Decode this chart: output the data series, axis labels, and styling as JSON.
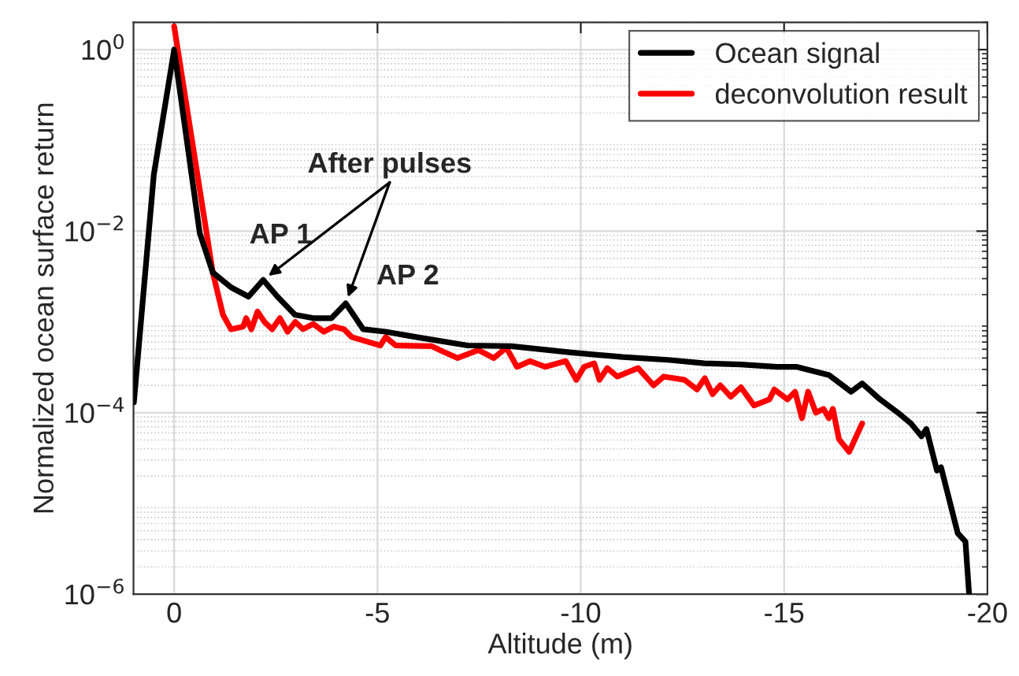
{
  "chart_data": {
    "type": "line",
    "xlabel": "Altitude (m)",
    "ylabel": "Normalized ocean surface return",
    "log": "y",
    "xlim": [
      1,
      -20
    ],
    "xticks": [
      0,
      -5,
      -10,
      -15,
      -20
    ],
    "ylim": [
      1e-06,
      2
    ],
    "yticks": [
      {
        "value": 1e-06,
        "label": "10$^{−6}$"
      },
      {
        "value": 0.0001,
        "label": "10$^{−4}$"
      },
      {
        "value": 0.01,
        "label": "10$^{−2}$"
      },
      {
        "value": 1,
        "label": "10$^{0}$"
      }
    ],
    "grid": true,
    "legend": "top right",
    "line_style": "solid",
    "marker": "none",
    "series": [
      {
        "name": "Ocean signal",
        "color": "#000000",
        "x": [
          0.99,
          0.5,
          0,
          -0.63,
          -0.95,
          -1.4,
          -1.83,
          -2.19,
          -2.54,
          -2.97,
          -3.42,
          -3.87,
          -4.22,
          -4.65,
          -5.2,
          -5.96,
          -7.22,
          -8.29,
          -9.76,
          -11.03,
          -12.2,
          -13.04,
          -13.94,
          -14.83,
          -15.3,
          -16.1,
          -16.65,
          -16.92,
          -17.36,
          -17.8,
          -18.12,
          -18.38,
          -18.5,
          -18.76,
          -18.86,
          -19.27,
          -19.46,
          -19.55
        ],
        "values": [
          0.00013,
          0.042,
          1.0,
          0.0095,
          0.0035,
          0.0024,
          0.0019,
          0.0029,
          0.0019,
          0.0012,
          0.0011,
          0.0011,
          0.0016,
          0.00083,
          0.00078,
          0.00068,
          0.00055,
          0.00054,
          0.00046,
          0.00041,
          0.00038,
          0.00035,
          0.00034,
          0.00032,
          0.00032,
          0.00026,
          0.00017,
          0.00021,
          0.00014,
          0.0001,
          7.6e-05,
          5.5e-05,
          6.6e-05,
          2.3e-05,
          2.5e-05,
          4.7e-06,
          3.8e-06,
          1e-06
        ]
      },
      {
        "name": "deconvolution result",
        "color": "#ff0000",
        "x": [
          0,
          -0.95,
          -1.2,
          -1.4,
          -1.7,
          -1.77,
          -1.9,
          -2.05,
          -2.22,
          -2.41,
          -2.6,
          -2.79,
          -2.98,
          -3.17,
          -3.42,
          -3.68,
          -3.93,
          -4.18,
          -4.37,
          -5.07,
          -5.2,
          -5.45,
          -6.34,
          -6.53,
          -6.97,
          -7.48,
          -7.86,
          -8.17,
          -8.43,
          -8.75,
          -9.13,
          -9.63,
          -9.89,
          -10.08,
          -10.33,
          -10.46,
          -10.65,
          -10.9,
          -11.41,
          -11.79,
          -12.04,
          -12.55,
          -12.86,
          -13.05,
          -13.24,
          -13.43,
          -13.69,
          -13.94,
          -14.26,
          -14.64,
          -14.76,
          -15.08,
          -15.27,
          -15.44,
          -15.59,
          -15.78,
          -15.97,
          -16.1,
          -16.2,
          -16.35,
          -16.6,
          -16.92
        ],
        "values": [
          1.8,
          0.0035,
          0.0012,
          0.00083,
          0.00089,
          0.0011,
          0.00083,
          0.0013,
          0.001,
          0.00083,
          0.0011,
          0.00078,
          0.001,
          0.00083,
          0.00095,
          0.00078,
          0.00089,
          0.00083,
          0.00068,
          0.00055,
          0.00068,
          0.00055,
          0.00054,
          0.00049,
          0.0004,
          0.00049,
          0.0004,
          0.00052,
          0.00032,
          0.00037,
          0.00032,
          0.00037,
          0.00023,
          0.00032,
          0.00035,
          0.00023,
          0.00031,
          0.00025,
          0.00031,
          0.0002,
          0.00025,
          0.00023,
          0.00018,
          0.00024,
          0.00016,
          0.0002,
          0.00015,
          0.00019,
          0.00012,
          0.00014,
          0.00018,
          0.00014,
          0.00017,
          8.7e-05,
          0.00017,
          0.0001,
          0.00011,
          8.7e-05,
          0.00011,
          5.1e-05,
          3.7e-05,
          7.6e-05
        ]
      }
    ],
    "annotations": [
      {
        "text": "AP 1",
        "x": -2.19,
        "y": 0.0029
      },
      {
        "text": "AP 2",
        "x": -4.22,
        "y": 0.0016
      },
      "After pulses"
    ]
  }
}
